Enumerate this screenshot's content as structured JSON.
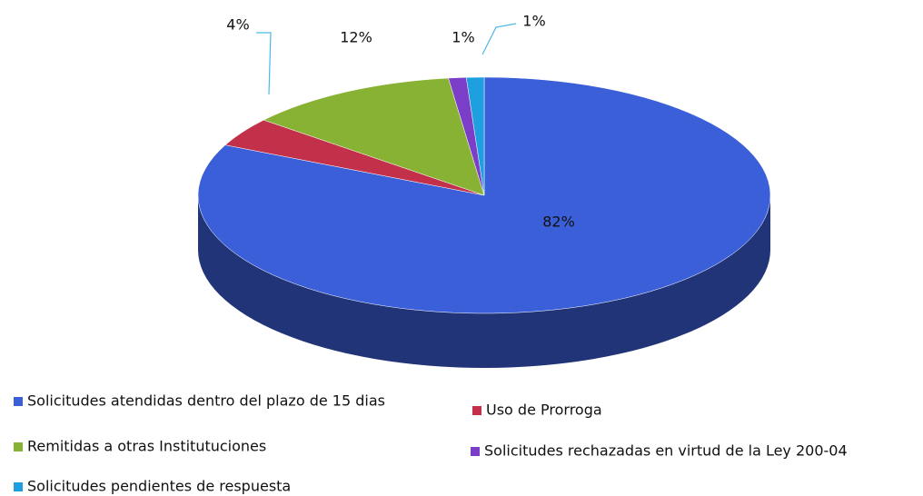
{
  "chart_data": {
    "type": "pie",
    "categories": [
      "Solicitudes atendidas dentro del plazo de 15 dias",
      "Uso de Prorroga",
      "Remitidas a otras Institutuciones",
      "Solicitudes rechazadas en virtud de la Ley 200-04",
      "Solicitudes pendientes de respuesta"
    ],
    "values": [
      82,
      4,
      12,
      1,
      1
    ],
    "value_labels": [
      "82%",
      "4%",
      "12%",
      "1%",
      "1%"
    ],
    "colors": [
      "#3b5fd8",
      "#c3304a",
      "#88b234",
      "#7a3ec8",
      "#1e9fe0"
    ],
    "legend": "bottom"
  }
}
